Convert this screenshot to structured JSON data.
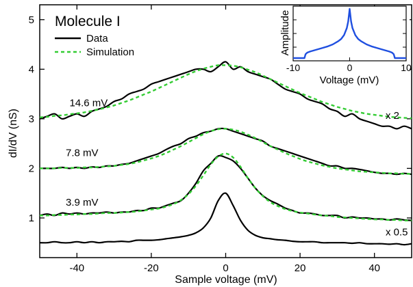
{
  "chart_data": [
    {
      "type": "line",
      "title": "Molecule I",
      "xlabel": "Sample voltage (mV)",
      "ylabel": "dI/dV (nS)",
      "xlim": [
        -50,
        50
      ],
      "ylim": [
        0.2,
        5.3
      ],
      "xticks": [
        -40,
        -20,
        0,
        20,
        40
      ],
      "xtick_labels": [
        "-40",
        "-20",
        "0",
        "20",
        "40"
      ],
      "yticks": [
        1,
        2,
        3,
        4,
        5
      ],
      "ytick_labels": [
        "1",
        "2",
        "3",
        "4",
        "5"
      ],
      "grid": false,
      "legend": {
        "position": "top-left",
        "entries": [
          {
            "label": "Data",
            "color": "#000000",
            "style": "solid"
          },
          {
            "label": "Simulation",
            "color": "#33cc33",
            "style": "dashed"
          }
        ]
      },
      "annotations": [
        {
          "text": "14.6 mV",
          "x": -42,
          "y": 3.25
        },
        {
          "text": "7.8 mV",
          "x": -43,
          "y": 2.25
        },
        {
          "text": "3.9 mV",
          "x": -43,
          "y": 1.25
        },
        {
          "text": "x 2",
          "x": 43,
          "y": 3.0
        },
        {
          "text": "x 0.5",
          "x": 43,
          "y": 0.65
        }
      ],
      "series": [
        {
          "name": "",
          "role": "data",
          "color": "#000000",
          "x": [
            -50,
            -48,
            -46,
            -44,
            -42,
            -40,
            -38,
            -36,
            -34,
            -32,
            -30,
            -28,
            -26,
            -24,
            -22,
            -20,
            -18,
            -16,
            -14,
            -12,
            -10,
            -8,
            -6,
            -4,
            -2,
            0,
            2,
            4,
            6,
            8,
            10,
            12,
            14,
            16,
            18,
            20,
            22,
            24,
            26,
            28,
            30,
            32,
            34,
            36,
            38,
            40,
            42,
            44,
            46,
            48,
            50
          ],
          "y": [
            3.0,
            3.05,
            3.1,
            3.0,
            3.05,
            3.1,
            3.05,
            3.15,
            3.2,
            3.25,
            3.35,
            3.4,
            3.5,
            3.55,
            3.6,
            3.7,
            3.75,
            3.8,
            3.85,
            3.9,
            3.95,
            4.0,
            4.0,
            3.95,
            4.05,
            4.15,
            4.0,
            4.05,
            3.95,
            3.9,
            3.85,
            3.8,
            3.7,
            3.6,
            3.55,
            3.5,
            3.4,
            3.35,
            3.3,
            3.2,
            3.15,
            3.05,
            3.1,
            3.0,
            2.95,
            2.9,
            2.85,
            2.85,
            2.8,
            2.85,
            2.8
          ]
        },
        {
          "name": "",
          "role": "simulation",
          "color": "#33cc33",
          "x": [
            -50,
            -48,
            -46,
            -44,
            -42,
            -40,
            -38,
            -36,
            -34,
            -32,
            -30,
            -28,
            -26,
            -24,
            -22,
            -20,
            -18,
            -16,
            -14,
            -12,
            -10,
            -8,
            -6,
            -4,
            -2,
            0,
            2,
            4,
            6,
            8,
            10,
            12,
            14,
            16,
            18,
            20,
            22,
            24,
            26,
            28,
            30,
            32,
            34,
            36,
            38,
            40,
            42,
            44,
            46,
            48,
            50
          ],
          "y": [
            3.03,
            3.04,
            3.06,
            3.07,
            3.09,
            3.11,
            3.13,
            3.16,
            3.19,
            3.23,
            3.27,
            3.32,
            3.37,
            3.43,
            3.49,
            3.55,
            3.62,
            3.69,
            3.76,
            3.83,
            3.9,
            3.96,
            4.01,
            4.05,
            4.08,
            4.08,
            4.07,
            4.04,
            3.99,
            3.94,
            3.87,
            3.8,
            3.73,
            3.66,
            3.59,
            3.52,
            3.46,
            3.4,
            3.34,
            3.29,
            3.24,
            3.2,
            3.16,
            3.13,
            3.1,
            3.08,
            3.06,
            3.04,
            3.03,
            3.02,
            3.01
          ]
        },
        {
          "name": "",
          "role": "data",
          "color": "#000000",
          "x": [
            -50,
            -48,
            -46,
            -44,
            -42,
            -40,
            -38,
            -36,
            -34,
            -32,
            -30,
            -28,
            -26,
            -24,
            -22,
            -20,
            -18,
            -16,
            -14,
            -12,
            -10,
            -8,
            -6,
            -4,
            -2,
            0,
            2,
            4,
            6,
            8,
            10,
            12,
            14,
            16,
            18,
            20,
            22,
            24,
            26,
            28,
            30,
            32,
            34,
            36,
            38,
            40,
            42,
            44,
            46,
            48,
            50
          ],
          "y": [
            2.0,
            2.0,
            2.0,
            2.02,
            2.0,
            2.02,
            2.0,
            2.03,
            2.02,
            2.05,
            2.05,
            2.08,
            2.1,
            2.15,
            2.2,
            2.25,
            2.3,
            2.38,
            2.45,
            2.5,
            2.6,
            2.65,
            2.72,
            2.75,
            2.8,
            2.8,
            2.75,
            2.7,
            2.65,
            2.6,
            2.55,
            2.45,
            2.4,
            2.35,
            2.3,
            2.25,
            2.2,
            2.15,
            2.1,
            2.05,
            2.05,
            2.0,
            2.0,
            1.98,
            1.95,
            1.92,
            1.9,
            1.9,
            1.88,
            1.9,
            1.88
          ]
        },
        {
          "name": "",
          "role": "simulation",
          "color": "#33cc33",
          "x": [
            -50,
            -48,
            -46,
            -44,
            -42,
            -40,
            -38,
            -36,
            -34,
            -32,
            -30,
            -28,
            -26,
            -24,
            -22,
            -20,
            -18,
            -16,
            -14,
            -12,
            -10,
            -8,
            -6,
            -4,
            -2,
            0,
            2,
            4,
            6,
            8,
            10,
            12,
            14,
            16,
            18,
            20,
            22,
            24,
            26,
            28,
            30,
            32,
            34,
            36,
            38,
            40,
            42,
            44,
            46,
            48,
            50
          ],
          "y": [
            2.0,
            2.0,
            2.0,
            2.01,
            2.01,
            2.01,
            2.02,
            2.02,
            2.03,
            2.04,
            2.05,
            2.07,
            2.09,
            2.12,
            2.16,
            2.2,
            2.25,
            2.31,
            2.38,
            2.45,
            2.53,
            2.61,
            2.69,
            2.75,
            2.79,
            2.8,
            2.78,
            2.74,
            2.68,
            2.61,
            2.53,
            2.45,
            2.38,
            2.31,
            2.25,
            2.19,
            2.14,
            2.1,
            2.06,
            2.03,
            2.0,
            1.98,
            1.96,
            1.94,
            1.93,
            1.92,
            1.91,
            1.9,
            1.9,
            1.89,
            1.89
          ]
        },
        {
          "name": "",
          "role": "data",
          "color": "#000000",
          "x": [
            -50,
            -48,
            -46,
            -44,
            -42,
            -40,
            -38,
            -36,
            -34,
            -32,
            -30,
            -28,
            -26,
            -24,
            -22,
            -20,
            -18,
            -16,
            -14,
            -12,
            -10,
            -8,
            -6,
            -4,
            -2,
            0,
            2,
            4,
            6,
            8,
            10,
            12,
            14,
            16,
            18,
            20,
            22,
            24,
            26,
            28,
            30,
            32,
            34,
            36,
            38,
            40,
            42,
            44,
            46,
            48,
            50
          ],
          "y": [
            1.05,
            1.08,
            1.05,
            1.1,
            1.08,
            1.1,
            1.08,
            1.1,
            1.1,
            1.12,
            1.1,
            1.12,
            1.12,
            1.15,
            1.15,
            1.2,
            1.2,
            1.25,
            1.3,
            1.35,
            1.5,
            1.7,
            1.95,
            2.1,
            2.25,
            2.22,
            2.15,
            2.0,
            1.8,
            1.6,
            1.45,
            1.35,
            1.28,
            1.2,
            1.15,
            1.1,
            1.1,
            1.08,
            1.05,
            1.05,
            1.05,
            1.0,
            1.02,
            1.0,
            1.0,
            0.98,
            0.98,
            0.96,
            0.98,
            0.96,
            0.95
          ]
        },
        {
          "name": "",
          "role": "simulation",
          "color": "#33cc33",
          "x": [
            -50,
            -48,
            -46,
            -44,
            -42,
            -40,
            -38,
            -36,
            -34,
            -32,
            -30,
            -28,
            -26,
            -24,
            -22,
            -20,
            -18,
            -16,
            -14,
            -12,
            -10,
            -8,
            -6,
            -4,
            -2,
            0,
            2,
            4,
            6,
            8,
            10,
            12,
            14,
            16,
            18,
            20,
            22,
            24,
            26,
            28,
            30,
            32,
            34,
            36,
            38,
            40,
            42,
            44,
            46,
            48,
            50
          ],
          "y": [
            1.05,
            1.05,
            1.06,
            1.06,
            1.07,
            1.07,
            1.08,
            1.08,
            1.09,
            1.1,
            1.1,
            1.11,
            1.12,
            1.13,
            1.15,
            1.17,
            1.19,
            1.23,
            1.28,
            1.36,
            1.48,
            1.65,
            1.86,
            2.08,
            2.24,
            2.3,
            2.22,
            2.03,
            1.8,
            1.6,
            1.44,
            1.32,
            1.24,
            1.18,
            1.14,
            1.11,
            1.09,
            1.07,
            1.05,
            1.04,
            1.02,
            1.01,
            1.0,
            0.99,
            0.98,
            0.97,
            0.97,
            0.96,
            0.96,
            0.95,
            0.95
          ]
        },
        {
          "name": "",
          "role": "data",
          "color": "#000000",
          "x": [
            -50,
            -48,
            -46,
            -44,
            -42,
            -40,
            -38,
            -36,
            -34,
            -32,
            -30,
            -28,
            -26,
            -24,
            -22,
            -20,
            -18,
            -16,
            -14,
            -12,
            -10,
            -8,
            -6,
            -4,
            -2,
            0,
            2,
            4,
            6,
            8,
            10,
            12,
            14,
            16,
            18,
            20,
            22,
            24,
            26,
            28,
            30,
            32,
            34,
            36,
            38,
            40,
            42,
            44,
            46,
            48,
            50
          ],
          "y": [
            0.5,
            0.5,
            0.52,
            0.5,
            0.5,
            0.52,
            0.5,
            0.52,
            0.5,
            0.52,
            0.52,
            0.53,
            0.52,
            0.55,
            0.55,
            0.55,
            0.56,
            0.58,
            0.6,
            0.62,
            0.65,
            0.7,
            0.8,
            1.0,
            1.35,
            1.5,
            1.25,
            0.95,
            0.75,
            0.65,
            0.6,
            0.58,
            0.56,
            0.55,
            0.53,
            0.52,
            0.52,
            0.52,
            0.5,
            0.5,
            0.5,
            0.5,
            0.49,
            0.5,
            0.48,
            0.48,
            0.48,
            0.47,
            0.48,
            0.46,
            0.48
          ]
        }
      ]
    },
    {
      "type": "line",
      "title": "",
      "xlabel": "Voltage (mV)",
      "ylabel": "Amplitude",
      "xlim": [
        -10,
        10
      ],
      "xticks": [
        -10,
        0,
        10
      ],
      "xtick_labels": [
        "-10",
        "0",
        "10"
      ],
      "ylim": [
        0,
        1
      ],
      "grid": false,
      "series": [
        {
          "name": "",
          "color": "#1f4fe0",
          "x": [
            -10,
            -9,
            -8,
            -7.8,
            -7.5,
            -7,
            -6,
            -5,
            -4,
            -3,
            -2,
            -1.5,
            -1,
            -0.5,
            -0.25,
            0,
            0.25,
            0.5,
            1,
            1.5,
            2,
            3,
            4,
            5,
            6,
            7,
            7.5,
            7.8,
            8,
            9,
            10
          ],
          "y": [
            0.05,
            0.05,
            0.05,
            0.12,
            0.15,
            0.17,
            0.2,
            0.23,
            0.26,
            0.3,
            0.36,
            0.4,
            0.47,
            0.6,
            0.72,
            0.95,
            0.72,
            0.6,
            0.47,
            0.4,
            0.36,
            0.3,
            0.26,
            0.23,
            0.2,
            0.17,
            0.15,
            0.12,
            0.05,
            0.05,
            0.05
          ]
        }
      ]
    }
  ]
}
